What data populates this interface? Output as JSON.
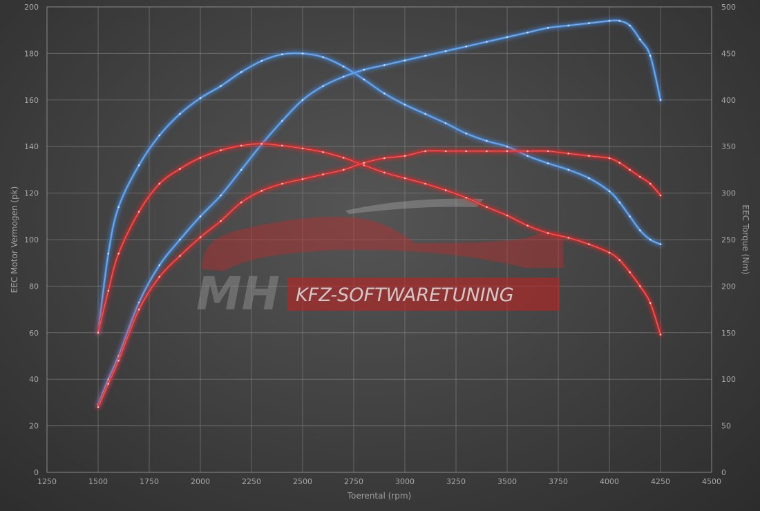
{
  "chart_data": {
    "type": "line",
    "xlabel": "Toerental (rpm)",
    "ylabel_left": "EEC Motor Vermogen (pk)",
    "ylabel_right": "EEC Torque (Nm)",
    "xlim": [
      1250,
      4500
    ],
    "xticks": [
      1250,
      1500,
      1750,
      2000,
      2250,
      2500,
      2750,
      3000,
      3250,
      3500,
      3750,
      4000,
      4250,
      4500
    ],
    "ylim_left": [
      0,
      200
    ],
    "yticks_left": [
      0,
      20,
      40,
      60,
      80,
      100,
      120,
      140,
      160,
      180,
      200
    ],
    "ylim_right": [
      0,
      500
    ],
    "yticks_right": [
      0,
      50,
      100,
      150,
      200,
      250,
      300,
      350,
      400,
      450,
      500
    ],
    "grid": true,
    "series": [
      {
        "id": "torque_tuned",
        "axis": "right",
        "color": "#4a8fe0",
        "x": [
          1500,
          1550,
          1600,
          1700,
          1800,
          1900,
          2000,
          2100,
          2200,
          2300,
          2400,
          2500,
          2600,
          2700,
          2800,
          2900,
          3000,
          3100,
          3200,
          3300,
          3400,
          3500,
          3600,
          3700,
          3800,
          3900,
          4000,
          4050,
          4100,
          4150,
          4200,
          4250
        ],
        "y": [
          150,
          235,
          285,
          330,
          362,
          385,
          402,
          415,
          430,
          442,
          449,
          450,
          446,
          436,
          422,
          407,
          395,
          385,
          375,
          364,
          356,
          350,
          340,
          332,
          325,
          316,
          302,
          290,
          275,
          260,
          250,
          245
        ]
      },
      {
        "id": "power_tuned",
        "axis": "left",
        "color": "#4a8fe0",
        "x": [
          1500,
          1550,
          1600,
          1700,
          1800,
          1900,
          2000,
          2100,
          2200,
          2300,
          2400,
          2500,
          2600,
          2700,
          2800,
          2900,
          3000,
          3100,
          3200,
          3300,
          3400,
          3500,
          3600,
          3700,
          3800,
          3900,
          4000,
          4050,
          4100,
          4150,
          4200,
          4250
        ],
        "y": [
          29,
          40,
          50,
          73,
          89,
          100,
          110,
          119,
          130,
          141,
          151,
          160,
          166,
          170,
          173,
          175,
          177,
          179,
          181,
          183,
          185,
          187,
          189,
          191,
          192,
          193,
          194,
          194,
          192,
          186,
          179,
          160
        ]
      },
      {
        "id": "torque_stock",
        "axis": "right",
        "color": "#e02a2a",
        "x": [
          1500,
          1550,
          1600,
          1700,
          1800,
          1900,
          2000,
          2100,
          2200,
          2300,
          2400,
          2500,
          2600,
          2700,
          2800,
          2900,
          3000,
          3100,
          3200,
          3300,
          3400,
          3500,
          3600,
          3700,
          3800,
          3900,
          4000,
          4050,
          4100,
          4150,
          4200,
          4250
        ],
        "y": [
          150,
          195,
          235,
          280,
          310,
          326,
          338,
          346,
          351,
          353,
          351,
          348,
          344,
          338,
          330,
          322,
          316,
          310,
          303,
          295,
          285,
          276,
          265,
          257,
          252,
          245,
          236,
          228,
          215,
          200,
          182,
          148
        ]
      },
      {
        "id": "power_stock",
        "axis": "left",
        "color": "#e02a2a",
        "x": [
          1500,
          1550,
          1600,
          1700,
          1800,
          1900,
          2000,
          2100,
          2200,
          2300,
          2400,
          2500,
          2600,
          2700,
          2800,
          2900,
          3000,
          3100,
          3200,
          3300,
          3400,
          3500,
          3600,
          3700,
          3800,
          3900,
          4000,
          4050,
          4100,
          4150,
          4200,
          4250
        ],
        "y": [
          28,
          38,
          48,
          70,
          84,
          93,
          101,
          108,
          116,
          121,
          124,
          126,
          128,
          130,
          133,
          135,
          136,
          138,
          138,
          138,
          138,
          138,
          138,
          138,
          137,
          136,
          135,
          133,
          130,
          127,
          124,
          119
        ]
      }
    ]
  },
  "watermark": {
    "logo_mh": "MH",
    "logo_text": "KFZ-SOFTWARETUNING"
  }
}
